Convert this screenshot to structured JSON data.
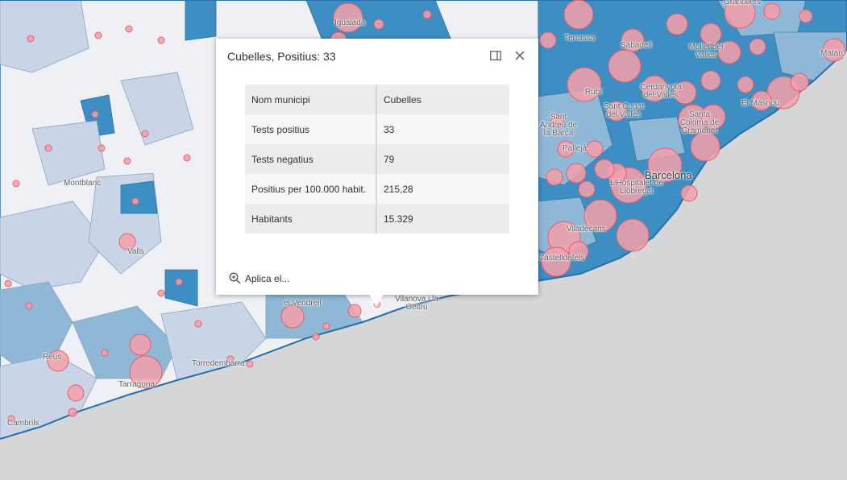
{
  "popup": {
    "title": "Cubelles, Positius: 33",
    "dock_icon": "dock-icon",
    "close_icon": "close-icon",
    "attributes": [
      {
        "key": "Nom municipi",
        "value": "Cubelles"
      },
      {
        "key": "Tests positius",
        "value": "33"
      },
      {
        "key": "Tests negatius",
        "value": "79"
      },
      {
        "key": "Positius per 100.000 habit.",
        "value": "215,28"
      },
      {
        "key": "Habitants",
        "value": "15.329"
      }
    ],
    "action": {
      "icon": "zoom-in-icon",
      "label": "Aplica el..."
    }
  },
  "map": {
    "colors": {
      "sea": "#d4d6d8",
      "land_light": "#eef0f5",
      "land_mid": "#c9d5e6",
      "land_blue": "#8fb7d6",
      "land_dark": "#3d8ec2",
      "border": "#2b6fa8",
      "circle_fill": "#f4a0aa",
      "circle_stroke": "#e06070"
    },
    "places": [
      {
        "name": "Igualada"
      },
      {
        "name": "Terrassa"
      },
      {
        "name": "Sabadell"
      },
      {
        "name": "Granollers"
      },
      {
        "name": "Mollet del Vallès"
      },
      {
        "name": "Mataró"
      },
      {
        "name": "Rubí"
      },
      {
        "name": "Cerdanyola del Vallès"
      },
      {
        "name": "El Masnou"
      },
      {
        "name": "Sant Cugat del Vallès"
      },
      {
        "name": "Santa Coloma de Gramenet"
      },
      {
        "name": "Sant Andreu de la Barca"
      },
      {
        "name": "Pallejà"
      },
      {
        "name": "Barcelona"
      },
      {
        "name": "L'Hospitalet de Llobregat"
      },
      {
        "name": "Viladecans"
      },
      {
        "name": "Castelldefels"
      },
      {
        "name": "Montblanc"
      },
      {
        "name": "Valls"
      },
      {
        "name": "el Vendrell"
      },
      {
        "name": "Vilanova i la Geltrú"
      },
      {
        "name": "Reus"
      },
      {
        "name": "Torredembarra"
      },
      {
        "name": "Tarragona"
      },
      {
        "name": "Cambrils"
      }
    ]
  }
}
